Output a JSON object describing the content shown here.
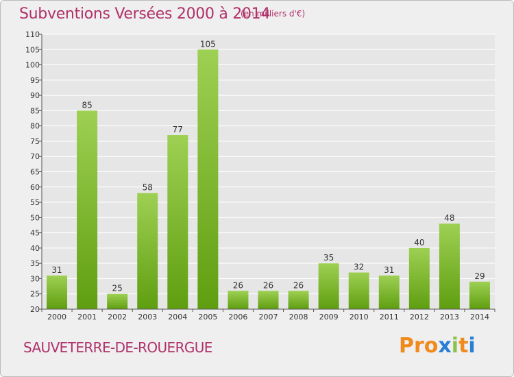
{
  "header": {
    "title": "Subventions Versées 2000 à 2014",
    "subtitle": "(en milliers d'€)"
  },
  "footer": {
    "commune": "SAUVETERRE-DE-ROUERGUE",
    "logo": "Proxiti"
  },
  "colors": {
    "title": "#b0306a",
    "bar_light": "#9ed053",
    "bar_dark": "#5f9e10",
    "grid": "#ffffff",
    "plot_background": "#e6e6e6",
    "logo_letters": [
      "#f08a1c",
      "#f08a1c",
      "#f08a1c",
      "#2a7fd4",
      "#8bc34a",
      "#f08a1c",
      "#2a7fd4"
    ]
  },
  "chart_data": {
    "type": "bar",
    "title": "Subventions Versées 2000 à 2014",
    "subtitle": "(en milliers d'€)",
    "xlabel": "",
    "ylabel": "",
    "categories": [
      "2000",
      "2001",
      "2002",
      "2003",
      "2004",
      "2005",
      "2006",
      "2007",
      "2008",
      "2009",
      "2010",
      "2011",
      "2012",
      "2013",
      "2014"
    ],
    "values": [
      31,
      85,
      25,
      58,
      77,
      105,
      26,
      26,
      26,
      35,
      32,
      31,
      40,
      48,
      29
    ],
    "ylim": [
      20,
      110
    ],
    "yticks": [
      20,
      25,
      30,
      35,
      40,
      45,
      50,
      55,
      60,
      65,
      70,
      75,
      80,
      85,
      90,
      95,
      100,
      105,
      110
    ],
    "grid": true,
    "legend": "none"
  }
}
